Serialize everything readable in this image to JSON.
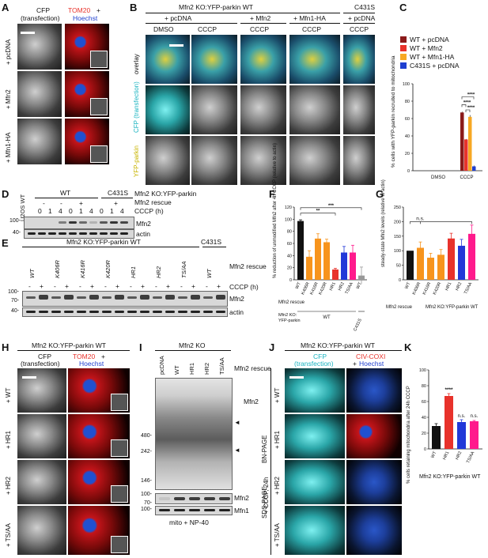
{
  "panels": [
    "A",
    "B",
    "C",
    "D",
    "E",
    "F",
    "G",
    "H",
    "I",
    "J",
    "K"
  ],
  "A": {
    "col1_title": "CFP",
    "col1_sub": "(transfection)",
    "col2_title_red": "TOM20",
    "col2_title_plus": "+",
    "col2_title_blue": "Hoechst",
    "rows": [
      "+ pcDNA",
      "+ Mfn2",
      "+ Mfn1-HA"
    ]
  },
  "B": {
    "header": "Mfn2 KO:YFP-parkin WT",
    "header2": "C431S",
    "groups": [
      "+ pcDNA",
      "+ Mfn2",
      "+ Mfn1-HA",
      "+ pcDNA"
    ],
    "conds": [
      "DMSO",
      "CCCP",
      "CCCP",
      "CCCP",
      "CCCP"
    ],
    "rows": [
      "overlay",
      "CFP (transfection)",
      "YFP-parkin"
    ]
  },
  "C": {
    "legend": [
      "WT + pcDNA",
      "WT + Mfn2",
      "WT + Mfn1-HA",
      "C431S + pcDNA"
    ],
    "colors": [
      "#8b1a1a",
      "#e8322b",
      "#f7a823",
      "#1f3fd0"
    ],
    "ylabel": "% cells with YFP-parkin recruited to mitochondria",
    "xcats": [
      "DMSO",
      "CCCP"
    ],
    "sig": [
      "****",
      "****",
      "****"
    ]
  },
  "D": {
    "lane_header": "U2OS WT",
    "wt": "WT",
    "c431s": "C431S",
    "line1": "Mfn2 KO:YFP-parkin",
    "line2": "Mfn2 rescue",
    "line3": "CCCP (h)",
    "rescue": [
      "-",
      "-",
      "+",
      "+",
      "+"
    ],
    "times": [
      "0",
      "1",
      "4",
      "0",
      "1",
      "4",
      "0",
      "1",
      "4"
    ],
    "markers": [
      "100-",
      "40-"
    ],
    "blots": [
      "Mfn2",
      "actin"
    ]
  },
  "E": {
    "header": "Mfn2 KO:YFP-parkin WT",
    "header2": "C431S",
    "lanes": [
      "WT",
      "K406R",
      "K416R",
      "K420R",
      "HR1",
      "HR2",
      "TS/AA",
      "WT"
    ],
    "rescue_label": "Mfn2 rescue",
    "cccp_label": "CCCP (h)",
    "pm": [
      "-",
      "+"
    ],
    "markers": [
      "100-",
      "70-",
      "40-"
    ],
    "blots": [
      "Mfn2",
      "actin"
    ]
  },
  "F": {
    "ylabel": "% reduction of unmodified Mfn2 after 4h CCCP (relative to actin)",
    "xlabel": "Mfn2 rescue",
    "sub1": "Mfn2 KO:",
    "sub2": "YFP-parkin",
    "wt": "WT",
    "c431s": "C431S",
    "sig": [
      "**",
      "***"
    ]
  },
  "G": {
    "ylabel": "steady-state Mfn2 levels (relative to actin)",
    "xlabel": "Mfn2 rescue",
    "sub": "Mfn2 KO:YFP-parkin WT",
    "sig": "n.s."
  },
  "H": {
    "col1_title": "CFP",
    "col1_sub": "(transfection)",
    "col2_title_red": "TOM20",
    "col2_title_plus": "+",
    "col2_title_blue": "Hoechst",
    "header": "Mfn2 KO:YFP-parkin WT",
    "rows": [
      "+ WT",
      "+ HR1",
      "+ HR2",
      "+ TS/AA"
    ]
  },
  "I": {
    "header": "Mfn2 KO",
    "lanes": [
      "pcDNA",
      "WT",
      "HR1",
      "HR2",
      "TS/AA"
    ],
    "rescue_label": "Mfn2 rescue",
    "markers_top": [
      "480-",
      "242-",
      "146-"
    ],
    "markers_bottom": [
      "100-",
      "70-",
      "100-"
    ],
    "labels": [
      "Mfn2",
      "Mfn2",
      "Mfn1"
    ],
    "page1": "BN-PAGE",
    "page2": "SDS-PAGE",
    "footer": "mito + NP-40"
  },
  "J": {
    "header": "Mfn2 KO:YFP-parkin WT",
    "col1": "CFP",
    "col1_sub": "(transfection)",
    "col2_red": "CIV-COXI",
    "col2_plus": "+",
    "col2_blue": "Hoechst",
    "side": "+ CCCP, 24h",
    "rows": [
      "+ WT",
      "+ HR1",
      "+ HR2",
      "+ TS/AA"
    ]
  },
  "K": {
    "ylabel": "% cells retaining mitochondria after 24h CCCP",
    "xcats": [
      "WT",
      "HR1",
      "HR2",
      "TS/AA"
    ],
    "sig": [
      "****",
      "n.s.",
      "n.s."
    ],
    "footer": "Mfn2 KO:YFP-parkin WT"
  },
  "chart_data": [
    {
      "type": "bar",
      "panel": "C",
      "categories": [
        "DMSO",
        "CCCP"
      ],
      "series": [
        {
          "name": "WT + pcDNA",
          "values": [
            0,
            67
          ]
        },
        {
          "name": "WT + Mfn2",
          "values": [
            0,
            36
          ]
        },
        {
          "name": "WT + Mfn1-HA",
          "values": [
            0,
            62
          ]
        },
        {
          "name": "C431S + pcDNA",
          "values": [
            0,
            5
          ]
        }
      ],
      "errors": [
        [
          0,
          1
        ],
        [
          0,
          0.5
        ],
        [
          0,
          2
        ],
        [
          0,
          1
        ]
      ],
      "ylim": [
        0,
        100
      ],
      "yticks": [
        0,
        20,
        40,
        60,
        80,
        100
      ]
    },
    {
      "type": "bar",
      "panel": "F",
      "categories": [
        "WT",
        "K406R",
        "K416R",
        "K420R",
        "HR1",
        "HR2",
        "TS/AA",
        "WT"
      ],
      "values": [
        97,
        38,
        68,
        62,
        17,
        45,
        45,
        7
      ],
      "errors": [
        2,
        10,
        8,
        5,
        2,
        10,
        12,
        14
      ],
      "colors": [
        "#111111",
        "#f7941d",
        "#f7941d",
        "#f7941d",
        "#e8322b",
        "#2238d8",
        "#ff1a8c",
        "#999999"
      ],
      "ylim": [
        0,
        120
      ],
      "yticks": [
        0,
        20,
        40,
        60,
        80,
        100,
        120
      ]
    },
    {
      "type": "bar",
      "panel": "G",
      "categories": [
        "WT",
        "K406R",
        "K416R",
        "K420R",
        "HR1",
        "HR2",
        "TS/AA"
      ],
      "values": [
        100,
        110,
        76,
        86,
        142,
        117,
        158
      ],
      "errors": [
        0,
        20,
        15,
        18,
        18,
        22,
        30
      ],
      "colors": [
        "#111111",
        "#f7941d",
        "#f7941d",
        "#f7941d",
        "#e8322b",
        "#2238d8",
        "#ff1a8c"
      ],
      "ylim": [
        0,
        250
      ],
      "yticks": [
        0,
        50,
        100,
        150,
        200,
        250
      ]
    },
    {
      "type": "bar",
      "panel": "K",
      "categories": [
        "WT",
        "HR1",
        "HR2",
        "TS/AA"
      ],
      "values": [
        29,
        67,
        34,
        35
      ],
      "errors": [
        3,
        3,
        3,
        1
      ],
      "colors": [
        "#111111",
        "#e8322b",
        "#2238d8",
        "#ff1a8c"
      ],
      "ylim": [
        0,
        100
      ],
      "yticks": [
        0,
        20,
        40,
        60,
        80,
        100
      ]
    }
  ]
}
